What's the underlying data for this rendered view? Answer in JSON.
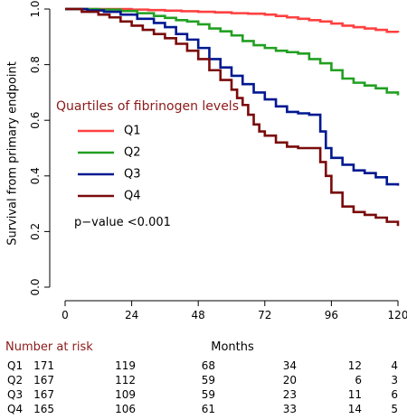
{
  "chart_data": {
    "type": "line",
    "step": true,
    "title": "",
    "xlabel": "Months",
    "ylabel": "Survival from primary endpoint",
    "xlim": [
      0,
      120
    ],
    "ylim": [
      0,
      1
    ],
    "x_ticks": [
      0,
      24,
      48,
      72,
      96,
      120
    ],
    "y_ticks": [
      0.0,
      0.2,
      0.4,
      0.6,
      0.8,
      1.0
    ],
    "y_tick_labels": [
      "0.0",
      "0.2",
      "0.4",
      "0.6",
      "0.8",
      "1.0"
    ],
    "grid": false,
    "legend": {
      "title": "Quartiles of fibrinogen levels",
      "placement": "left-middle"
    },
    "annotation": "p−value <0.001",
    "series": [
      {
        "name": "Q1",
        "color": "#ff4040",
        "x": [
          0,
          12,
          24,
          30,
          36,
          42,
          48,
          54,
          60,
          66,
          72,
          76,
          80,
          84,
          88,
          92,
          96,
          100,
          104,
          108,
          112,
          116,
          120
        ],
        "y": [
          1.0,
          1.0,
          0.998,
          0.996,
          0.994,
          0.992,
          0.99,
          0.988,
          0.985,
          0.983,
          0.98,
          0.975,
          0.97,
          0.965,
          0.96,
          0.955,
          0.948,
          0.94,
          0.935,
          0.93,
          0.925,
          0.918,
          0.915
        ]
      },
      {
        "name": "Q2",
        "color": "#22a022",
        "x": [
          0,
          12,
          20,
          26,
          32,
          36,
          40,
          44,
          48,
          52,
          56,
          60,
          64,
          68,
          72,
          76,
          80,
          84,
          88,
          92,
          96,
          100,
          104,
          108,
          112,
          116,
          120
        ],
        "y": [
          1.0,
          0.998,
          0.993,
          0.985,
          0.975,
          0.968,
          0.96,
          0.955,
          0.945,
          0.93,
          0.92,
          0.905,
          0.885,
          0.87,
          0.86,
          0.85,
          0.845,
          0.84,
          0.82,
          0.805,
          0.78,
          0.75,
          0.735,
          0.725,
          0.715,
          0.7,
          0.69
        ]
      },
      {
        "name": "Q3",
        "color": "#001890",
        "x": [
          0,
          8,
          14,
          20,
          26,
          32,
          36,
          40,
          44,
          48,
          52,
          56,
          60,
          64,
          68,
          72,
          76,
          80,
          84,
          88,
          92,
          94,
          96,
          100,
          104,
          108,
          112,
          116,
          120
        ],
        "y": [
          1.0,
          0.995,
          0.99,
          0.98,
          0.965,
          0.95,
          0.935,
          0.91,
          0.89,
          0.86,
          0.82,
          0.79,
          0.76,
          0.73,
          0.7,
          0.675,
          0.65,
          0.63,
          0.625,
          0.62,
          0.56,
          0.5,
          0.465,
          0.44,
          0.42,
          0.41,
          0.395,
          0.37,
          0.365
        ]
      },
      {
        "name": "Q4",
        "color": "#7a0a0a",
        "x": [
          0,
          6,
          12,
          16,
          20,
          24,
          28,
          32,
          36,
          40,
          44,
          48,
          52,
          56,
          60,
          62,
          64,
          66,
          68,
          70,
          72,
          76,
          80,
          84,
          88,
          92,
          94,
          96,
          100,
          104,
          108,
          112,
          116,
          120
        ],
        "y": [
          1.0,
          0.99,
          0.98,
          0.97,
          0.955,
          0.94,
          0.925,
          0.91,
          0.895,
          0.875,
          0.85,
          0.82,
          0.78,
          0.745,
          0.71,
          0.68,
          0.655,
          0.62,
          0.585,
          0.56,
          0.545,
          0.52,
          0.505,
          0.5,
          0.5,
          0.45,
          0.4,
          0.34,
          0.29,
          0.27,
          0.26,
          0.25,
          0.235,
          0.22
        ]
      }
    ],
    "risk_table": {
      "header": "Number at risk",
      "time_points": [
        0,
        24,
        48,
        72,
        96,
        120
      ],
      "rows": [
        {
          "label": "Q1",
          "values": [
            "171",
            "119",
            "68",
            "34",
            "12",
            "4"
          ]
        },
        {
          "label": "Q2",
          "values": [
            "167",
            "112",
            "59",
            "20",
            "6",
            "3"
          ]
        },
        {
          "label": "Q3",
          "values": [
            "167",
            "109",
            "59",
            "23",
            "11",
            "6"
          ]
        },
        {
          "label": "Q4",
          "values": [
            "165",
            "106",
            "61",
            "33",
            "14",
            "5"
          ]
        }
      ]
    }
  }
}
